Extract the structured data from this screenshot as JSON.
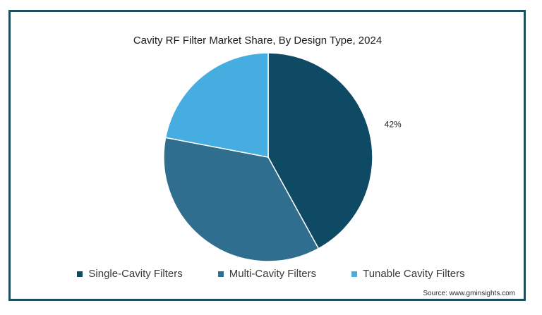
{
  "chart_data": {
    "type": "pie",
    "title": "Cavity RF Filter Market Share, By Design Type, 2024",
    "slices": [
      {
        "label": "Single-Cavity Filters",
        "value": 42,
        "color": "#0e4a63",
        "data_label": "42%"
      },
      {
        "label": "Multi-Cavity Filters",
        "value": 36,
        "color": "#306e90",
        "data_label": ""
      },
      {
        "label": "Tunable Cavity Filters",
        "value": 22,
        "color": "#45ade0",
        "data_label": ""
      }
    ],
    "legend_position": "bottom",
    "source": "Source: www.gminsights.com"
  }
}
